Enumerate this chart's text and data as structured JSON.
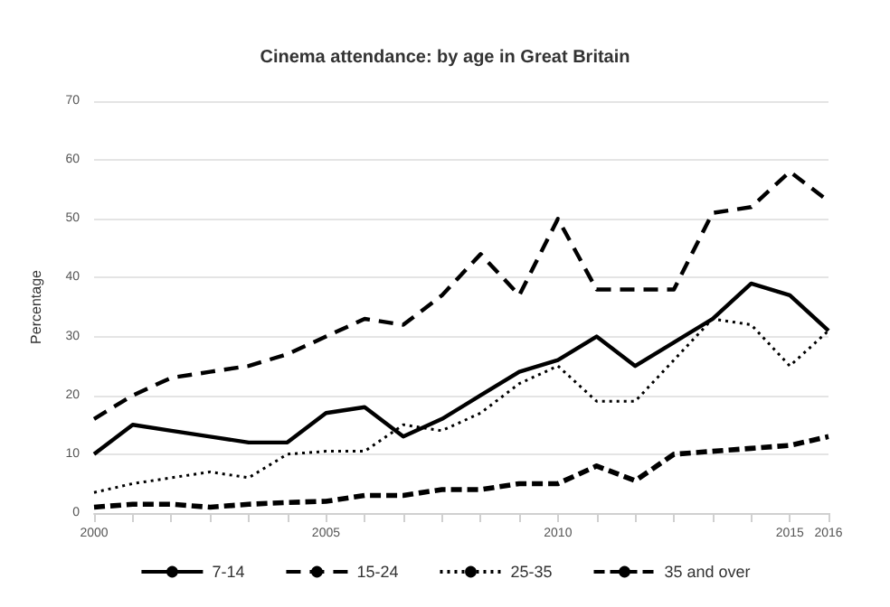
{
  "chart_data": {
    "type": "line",
    "title": "Cinema attendance: by age in Great Britain",
    "ylabel": "Percentage",
    "categories": [
      "2000",
      null,
      null,
      null,
      null,
      null,
      "2005",
      null,
      null,
      null,
      null,
      null,
      "2010",
      null,
      null,
      null,
      null,
      null,
      "2015",
      "2016"
    ],
    "ylim": [
      0,
      70
    ],
    "yticks": [
      0,
      10,
      20,
      30,
      40,
      50,
      60,
      70
    ],
    "grid": "y",
    "legend": "bottom",
    "marker": "none",
    "series": [
      {
        "name": "7-14",
        "color": "#000000",
        "line_style": "solid",
        "values": [
          10,
          15,
          14,
          13,
          12,
          12,
          17,
          18,
          13,
          16,
          20,
          24,
          26,
          30,
          25,
          29,
          33,
          39,
          37,
          31
        ]
      },
      {
        "name": "15-24",
        "color": "#000000",
        "line_style": "dashed",
        "values": [
          16,
          20,
          23,
          24,
          25,
          27,
          30,
          33,
          32,
          37,
          44,
          37,
          50,
          38,
          38,
          38,
          51,
          52,
          58,
          53
        ]
      },
      {
        "name": "25-35",
        "color": "#000000",
        "line_style": "dotted",
        "values": [
          3.5,
          5,
          6,
          7,
          6,
          10,
          10.5,
          10.5,
          15,
          14,
          17,
          22,
          25,
          19,
          19,
          26,
          33,
          32,
          25,
          31
        ]
      },
      {
        "name": "35 and over",
        "color": "#000000",
        "line_style": "dashed",
        "values": [
          1,
          1.5,
          1.5,
          1,
          1.5,
          1.8,
          2,
          3,
          3,
          4,
          4,
          5,
          5,
          8,
          5.5,
          10,
          10.5,
          11,
          11.5,
          13
        ]
      }
    ]
  }
}
